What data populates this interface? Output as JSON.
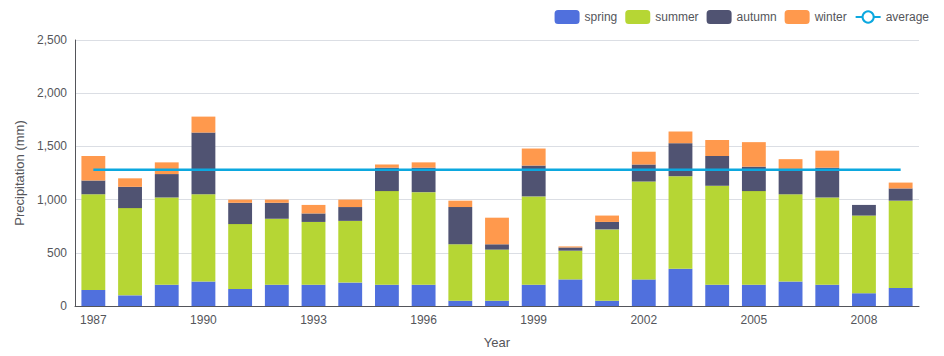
{
  "chart_data": {
    "type": "bar",
    "stacked": true,
    "grid": true,
    "legend": "upper right",
    "xlabel": "Year",
    "ylabel": "Precipitation (mm)",
    "categories": [
      "1987",
      null,
      null,
      "1990",
      null,
      null,
      "1993",
      null,
      null,
      "1996",
      null,
      null,
      "1999",
      null,
      null,
      "2002",
      null,
      null,
      "2005",
      null,
      null,
      "2008",
      null
    ],
    "series": [
      {
        "name": "spring",
        "values": [
          150,
          100,
          200,
          230,
          160,
          200,
          200,
          220,
          200,
          200,
          50,
          50,
          200,
          250,
          50,
          250,
          350,
          200,
          200,
          230,
          200,
          120,
          170
        ]
      },
      {
        "name": "summer",
        "values": [
          900,
          820,
          820,
          820,
          610,
          620,
          590,
          580,
          880,
          870,
          530,
          480,
          830,
          270,
          670,
          920,
          870,
          930,
          880,
          820,
          820,
          730,
          820
        ]
      },
      {
        "name": "autumn",
        "values": [
          130,
          200,
          220,
          580,
          200,
          150,
          80,
          130,
          220,
          230,
          350,
          50,
          290,
          30,
          70,
          160,
          310,
          280,
          230,
          230,
          280,
          100,
          115
        ]
      },
      {
        "name": "winter",
        "values": [
          230,
          80,
          110,
          150,
          30,
          30,
          80,
          70,
          30,
          50,
          60,
          250,
          160,
          10,
          60,
          120,
          110,
          150,
          230,
          100,
          160,
          0,
          55
        ]
      },
      {
        "name": "average",
        "type": "line",
        "values": [
          1280,
          1280,
          1280,
          1280,
          1280,
          1280,
          1280,
          1280,
          1280,
          1280,
          1280,
          1280,
          1280,
          1280,
          1280,
          1280,
          1280,
          1280,
          1280,
          1280,
          1280,
          1280,
          1280
        ]
      }
    ],
    "ylim": [
      0,
      2500
    ],
    "yticks": [
      0,
      500,
      {
        "value": 1000,
        "label": "1,000"
      },
      {
        "value": 1500,
        "label": "1,500"
      },
      {
        "value": 2000,
        "label": "2,000"
      },
      {
        "value": 2500,
        "label": "2,500"
      }
    ]
  }
}
